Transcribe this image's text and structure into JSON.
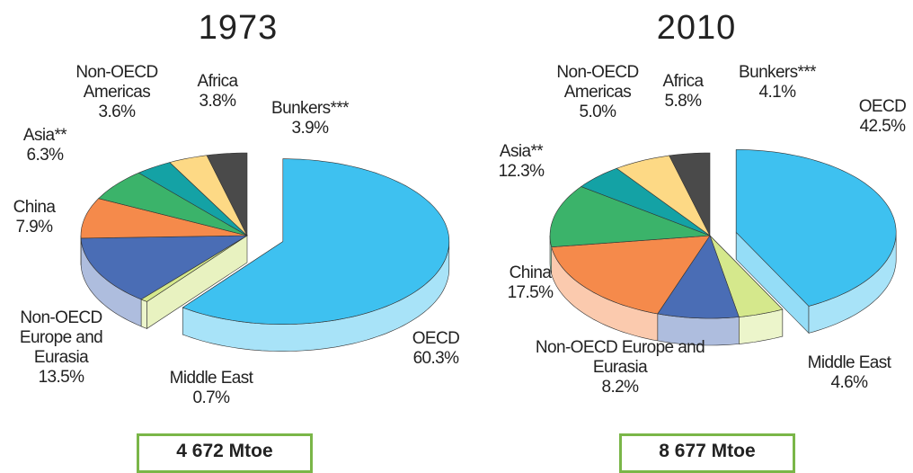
{
  "chart_data": [
    {
      "type": "pie",
      "title": "1973",
      "total_label": "4 672 Mtoe",
      "categories": [
        "OECD",
        "Middle East",
        "Non-OECD Europe and Eurasia",
        "China",
        "Asia**",
        "Non-OECD Americas",
        "Africa",
        "Bunkers***"
      ],
      "values": [
        60.3,
        0.7,
        13.5,
        7.9,
        6.3,
        3.6,
        3.8,
        3.9
      ],
      "value_labels": [
        "60.3%",
        "0.7%",
        "13.5%",
        "7.9%",
        "6.3%",
        "3.6%",
        "3.8%",
        "3.9%"
      ],
      "colors": [
        "#3ec1f0",
        "#d5e88c",
        "#4a6db5",
        "#f58a4b",
        "#3bb36a",
        "#14a2a5",
        "#fdd985",
        "#4a4a4a"
      ]
    },
    {
      "type": "pie",
      "title": "2010",
      "total_label": "8 677 Mtoe",
      "categories": [
        "OECD",
        "Middle East",
        "Non-OECD Europe and Eurasia",
        "China",
        "Asia**",
        "Non-OECD Americas",
        "Africa",
        "Bunkers***"
      ],
      "values": [
        42.5,
        4.6,
        8.2,
        17.5,
        12.3,
        5.0,
        5.8,
        4.1
      ],
      "value_labels": [
        "42.5%",
        "4.6%",
        "8.2%",
        "17.5%",
        "12.3%",
        "5.0%",
        "5.8%",
        "4.1%"
      ],
      "colors": [
        "#3ec1f0",
        "#d5e88c",
        "#4a6db5",
        "#f58a4b",
        "#3bb36a",
        "#14a2a5",
        "#fdd985",
        "#4a4a4a"
      ]
    }
  ]
}
